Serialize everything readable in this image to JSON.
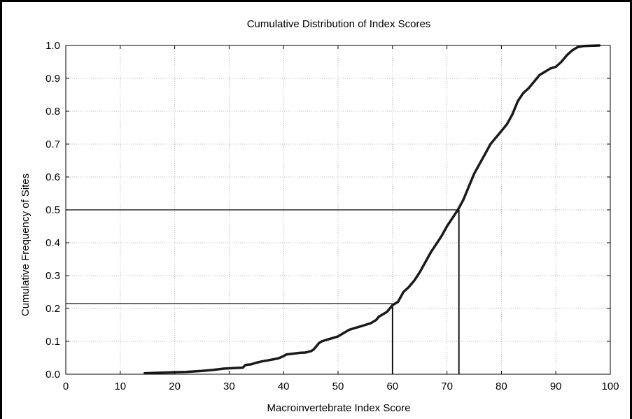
{
  "chart_data": {
    "type": "line",
    "title": "Cumulative Distribution of Index Scores",
    "xlabel": "Macroinvertebrate Index Score",
    "ylabel": "Cumulative Frequency of Sites",
    "xlim": [
      0,
      100
    ],
    "ylim": [
      0,
      1.0
    ],
    "xticks": [
      "0",
      "10",
      "20",
      "30",
      "40",
      "50",
      "60",
      "70",
      "80",
      "90",
      "100"
    ],
    "yticks": [
      "0.0",
      "0.1",
      "0.2",
      "0.3",
      "0.4",
      "0.5",
      "0.6",
      "0.7",
      "0.8",
      "0.9",
      "1.0"
    ],
    "grid": true,
    "series": [
      {
        "values": [
          [
            14.5,
            0.003
          ],
          [
            18,
            0.005
          ],
          [
            22,
            0.007
          ],
          [
            25,
            0.01
          ],
          [
            27,
            0.013
          ],
          [
            29,
            0.017
          ],
          [
            31,
            0.019
          ],
          [
            32.5,
            0.02
          ],
          [
            33,
            0.028
          ],
          [
            34,
            0.03
          ],
          [
            35,
            0.035
          ],
          [
            36,
            0.039
          ],
          [
            37,
            0.042
          ],
          [
            38,
            0.045
          ],
          [
            39,
            0.048
          ],
          [
            40,
            0.055
          ],
          [
            40.5,
            0.06
          ],
          [
            42,
            0.063
          ],
          [
            43,
            0.065
          ],
          [
            44,
            0.066
          ],
          [
            45,
            0.07
          ],
          [
            45.5,
            0.075
          ],
          [
            46,
            0.085
          ],
          [
            46.5,
            0.095
          ],
          [
            47,
            0.1
          ],
          [
            48,
            0.105
          ],
          [
            49,
            0.11
          ],
          [
            50,
            0.115
          ],
          [
            51,
            0.125
          ],
          [
            52,
            0.135
          ],
          [
            53,
            0.14
          ],
          [
            54,
            0.145
          ],
          [
            55,
            0.15
          ],
          [
            56,
            0.155
          ],
          [
            57,
            0.165
          ],
          [
            57.5,
            0.175
          ],
          [
            58,
            0.18
          ],
          [
            58.5,
            0.185
          ],
          [
            59,
            0.19
          ],
          [
            59.5,
            0.2
          ],
          [
            60,
            0.21
          ],
          [
            60.5,
            0.215
          ],
          [
            61,
            0.22
          ],
          [
            61.5,
            0.235
          ],
          [
            62,
            0.25
          ],
          [
            63,
            0.265
          ],
          [
            64,
            0.285
          ],
          [
            65,
            0.31
          ],
          [
            66,
            0.34
          ],
          [
            67,
            0.37
          ],
          [
            68,
            0.395
          ],
          [
            69,
            0.42
          ],
          [
            70,
            0.45
          ],
          [
            71,
            0.475
          ],
          [
            72,
            0.5
          ],
          [
            73,
            0.53
          ],
          [
            74,
            0.57
          ],
          [
            75,
            0.61
          ],
          [
            76,
            0.64
          ],
          [
            77,
            0.67
          ],
          [
            78,
            0.7
          ],
          [
            79,
            0.72
          ],
          [
            80,
            0.74
          ],
          [
            81,
            0.76
          ],
          [
            82,
            0.79
          ],
          [
            83,
            0.83
          ],
          [
            84,
            0.855
          ],
          [
            85,
            0.87
          ],
          [
            86,
            0.89
          ],
          [
            87,
            0.91
          ],
          [
            88,
            0.92
          ],
          [
            89,
            0.93
          ],
          [
            90,
            0.935
          ],
          [
            91,
            0.95
          ],
          [
            92,
            0.97
          ],
          [
            93,
            0.985
          ],
          [
            94,
            0.995
          ],
          [
            95,
            0.998
          ],
          [
            96,
            0.999
          ],
          [
            98,
            1.0
          ]
        ]
      }
    ],
    "reference_lines": [
      {
        "x": 72.2,
        "y": 0.5
      },
      {
        "x": 60.0,
        "y": 0.215
      }
    ]
  }
}
